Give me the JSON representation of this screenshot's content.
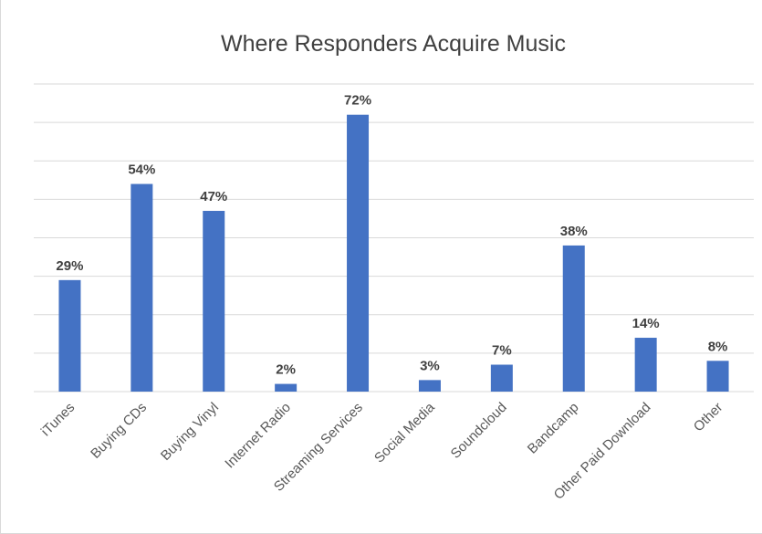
{
  "chart_data": {
    "type": "bar",
    "title": "Where Responders Acquire Music",
    "xlabel": "",
    "ylabel": "",
    "categories": [
      "iTunes",
      "Buying CDs",
      "Buying Vinyl",
      "Internet Radio",
      "Streaming Services",
      "Social Media",
      "Soundcloud",
      "Bandcamp",
      "Other Paid Download",
      "Other"
    ],
    "values": [
      29,
      54,
      47,
      2,
      72,
      3,
      7,
      38,
      14,
      8
    ],
    "value_labels": [
      "29%",
      "54%",
      "47%",
      "2%",
      "72%",
      "3%",
      "7%",
      "38%",
      "14%",
      "8%"
    ],
    "ylim": [
      0,
      80
    ],
    "gridlines": true,
    "legend": "none",
    "bar_color": "#4472c4"
  }
}
